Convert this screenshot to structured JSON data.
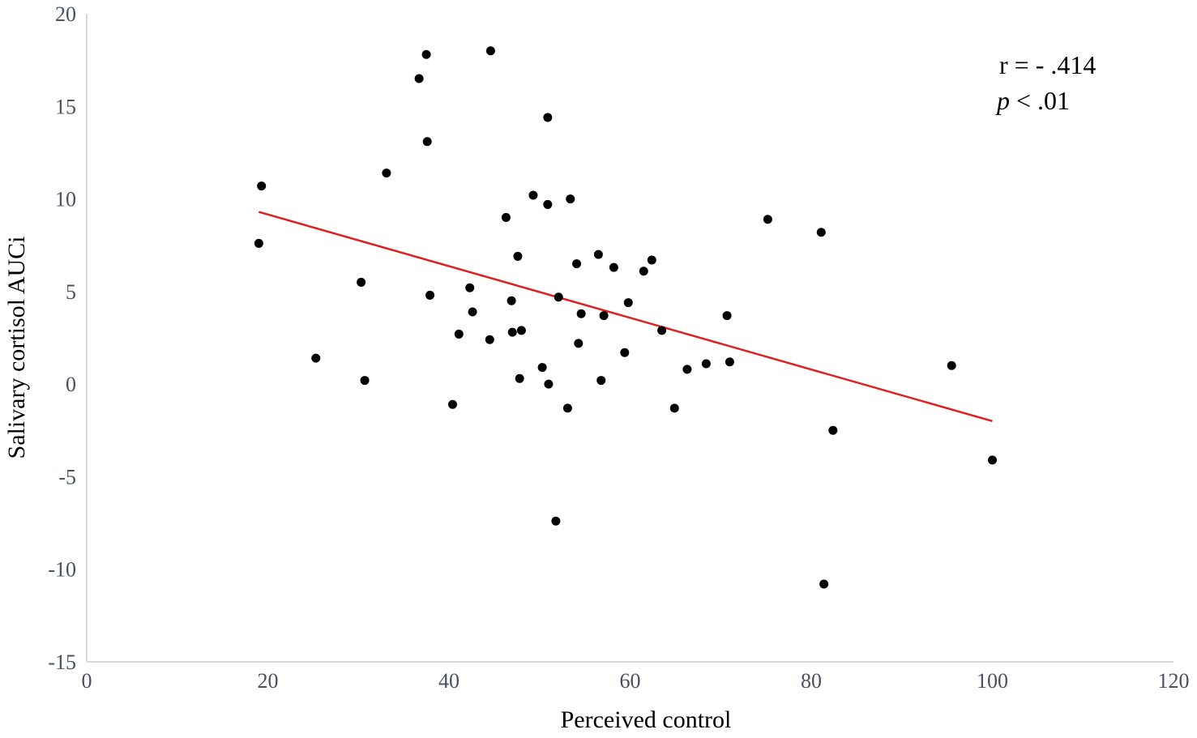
{
  "chart_data": {
    "type": "scatter",
    "title": "",
    "xlabel": "Perceived control",
    "ylabel": "Salivary cortisol  AUCi",
    "xlim": [
      0,
      120
    ],
    "ylim": [
      -15,
      20
    ],
    "x_ticks": [
      "0",
      "20",
      "40",
      "60",
      "80",
      "100",
      "120"
    ],
    "y_ticks": [
      "20",
      "15",
      "10",
      "5",
      "0",
      "-5",
      "-10",
      "-15"
    ],
    "grid": false,
    "legend": "none",
    "points": [
      {
        "x": 19,
        "y": 7.6
      },
      {
        "x": 19.3,
        "y": 10.7
      },
      {
        "x": 25.3,
        "y": 1.4
      },
      {
        "x": 30.3,
        "y": 5.5
      },
      {
        "x": 30.7,
        "y": 0.2
      },
      {
        "x": 33.1,
        "y": 11.4
      },
      {
        "x": 36.7,
        "y": 16.5
      },
      {
        "x": 37.5,
        "y": 17.8
      },
      {
        "x": 37.6,
        "y": 13.1
      },
      {
        "x": 37.9,
        "y": 4.8
      },
      {
        "x": 40.4,
        "y": -1.1
      },
      {
        "x": 41.1,
        "y": 2.7
      },
      {
        "x": 42.3,
        "y": 5.2
      },
      {
        "x": 42.6,
        "y": 3.9
      },
      {
        "x": 44.5,
        "y": 2.4
      },
      {
        "x": 44.6,
        "y": 18
      },
      {
        "x": 46.3,
        "y": 9
      },
      {
        "x": 46.9,
        "y": 4.5
      },
      {
        "x": 47.0,
        "y": 2.8
      },
      {
        "x": 47.6,
        "y": 6.9
      },
      {
        "x": 47.8,
        "y": 0.3
      },
      {
        "x": 48.0,
        "y": 2.9
      },
      {
        "x": 49.3,
        "y": 10.2
      },
      {
        "x": 50.3,
        "y": 0.9
      },
      {
        "x": 50.9,
        "y": 14.4
      },
      {
        "x": 50.9,
        "y": 9.7
      },
      {
        "x": 51.0,
        "y": 0
      },
      {
        "x": 51.8,
        "y": -7.4
      },
      {
        "x": 52.1,
        "y": 4.7
      },
      {
        "x": 53.1,
        "y": -1.3
      },
      {
        "x": 53.4,
        "y": 10
      },
      {
        "x": 54.1,
        "y": 6.5
      },
      {
        "x": 54.3,
        "y": 2.2
      },
      {
        "x": 54.6,
        "y": 3.8
      },
      {
        "x": 56.5,
        "y": 7
      },
      {
        "x": 56.8,
        "y": 0.2
      },
      {
        "x": 57.1,
        "y": 3.7
      },
      {
        "x": 58.2,
        "y": 6.3
      },
      {
        "x": 59.4,
        "y": 1.7
      },
      {
        "x": 59.8,
        "y": 4.4
      },
      {
        "x": 61.5,
        "y": 6.1
      },
      {
        "x": 62.4,
        "y": 6.7
      },
      {
        "x": 63.5,
        "y": 2.9
      },
      {
        "x": 64.9,
        "y": -1.3
      },
      {
        "x": 66.3,
        "y": 0.8
      },
      {
        "x": 68.4,
        "y": 1.1
      },
      {
        "x": 70.7,
        "y": 3.7
      },
      {
        "x": 71.0,
        "y": 1.2
      },
      {
        "x": 75.2,
        "y": 8.9
      },
      {
        "x": 81.1,
        "y": 8.2
      },
      {
        "x": 81.4,
        "y": -10.8
      },
      {
        "x": 82.4,
        "y": -2.5
      },
      {
        "x": 95.5,
        "y": 1
      },
      {
        "x": 100,
        "y": -4.1
      }
    ],
    "trendline": {
      "color": "#e01f1f",
      "x": [
        19,
        100
      ],
      "y": [
        9.3,
        -2
      ]
    },
    "annotations": {
      "r_text": "r = - .414",
      "p_letter": "p",
      "p_rest": " < .01"
    },
    "colors": {
      "points": "#000000",
      "axis": "#c8ccd6",
      "tick_text": "#4a5063"
    }
  }
}
